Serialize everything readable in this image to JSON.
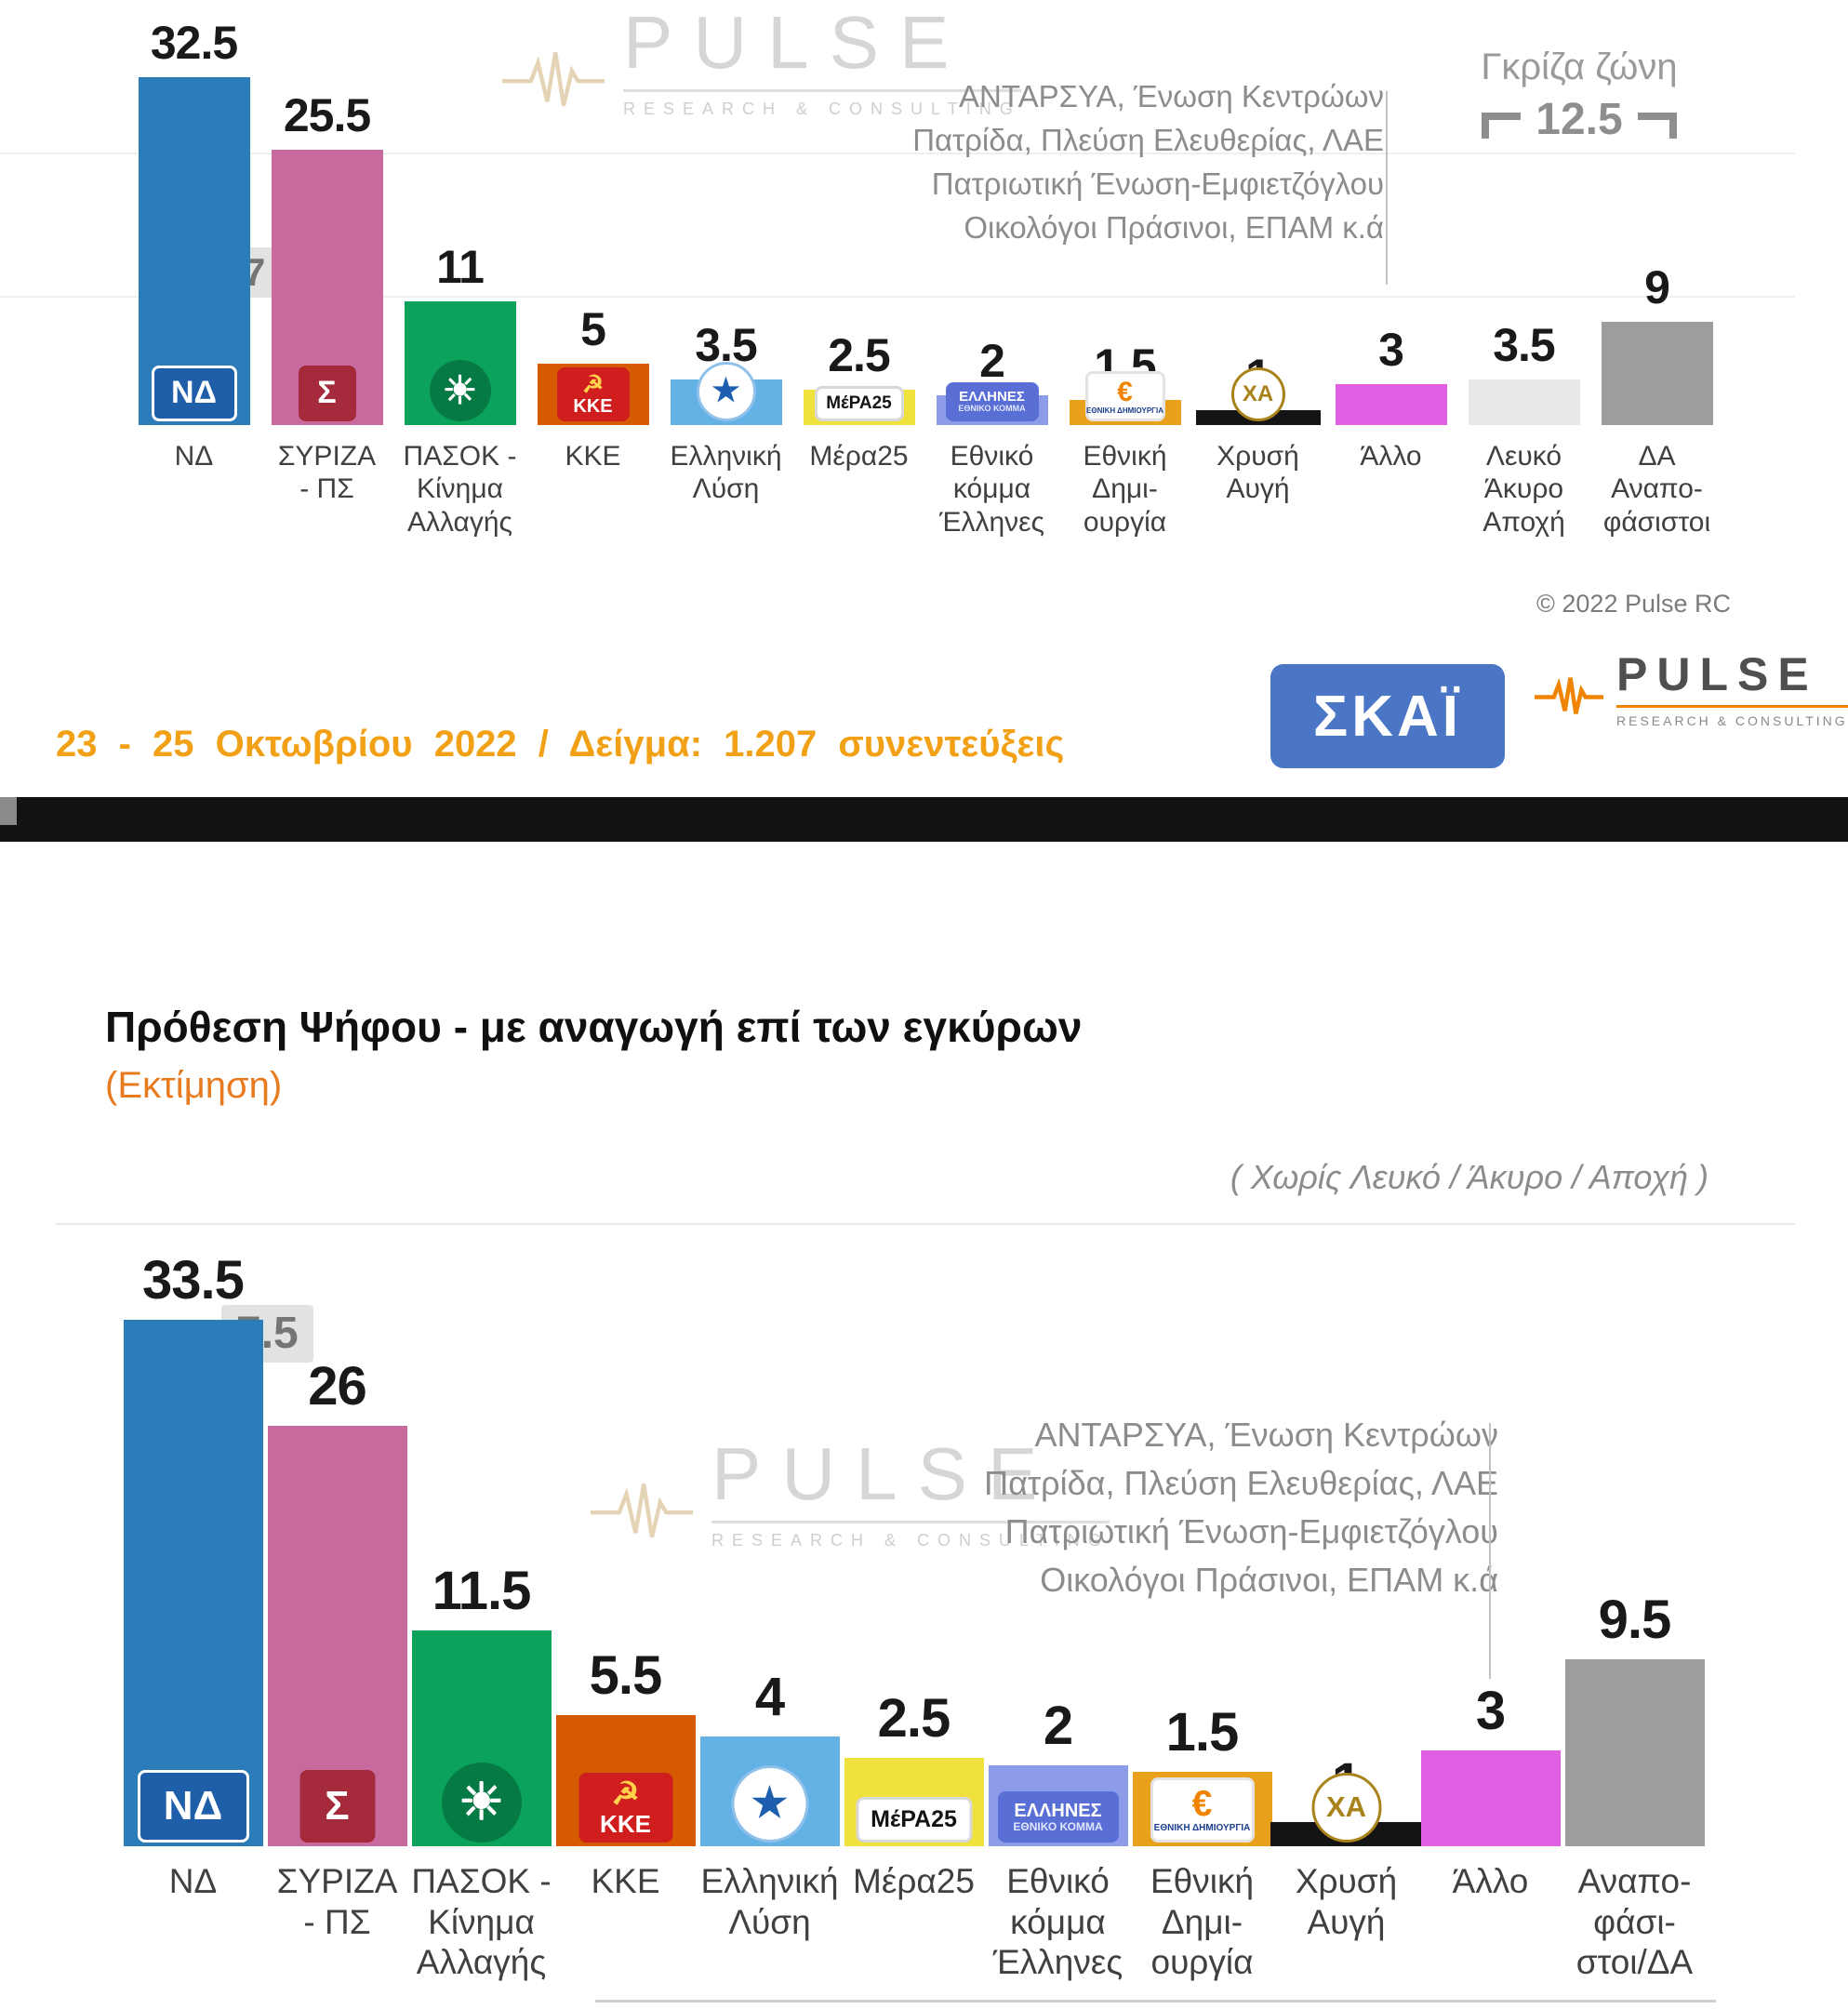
{
  "meta": {
    "copyright": "© 2022 Pulse RC",
    "footer_text": "23 - 25 Οκτωβρίου 2022 / Δείγμα: 1.207 συνεντεύξεις",
    "skai_logo_text": "ΣΚΑΪ",
    "pulse_logo_text": "PULSE",
    "pulse_logo_sub": "RESEARCH & CONSULTING"
  },
  "annotation": {
    "lines": [
      "ΑΝΤΑΡΣΥΑ, Ένωση Κεντρώων",
      "Πατρίδα, Πλεύση Ελευθερίας, ΛΑΕ",
      "Πατριωτική Ένωση-Εμφιετζόγλου",
      "Οικολόγοι Πράσινοι, ΕΠΑΜ  κ.ά"
    ]
  },
  "gray_zone": {
    "label": "Γκρίζα ζώνη",
    "value": "12.5"
  },
  "party_logos": {
    "nd": {
      "name": "nd-logo",
      "text": "ΝΔ",
      "ts": 34,
      "bg": "#1f5fa9",
      "fg": "#ffffff",
      "border": "#ffffff",
      "w": 92,
      "h": 60
    },
    "syriza-ps": {
      "name": "syriza-logo",
      "text": "Σ",
      "ts": 34,
      "bg": "#a52a3c",
      "fg": "#ffffff",
      "w": 62,
      "h": 60
    },
    "pasok": {
      "name": "pasok-logo",
      "text": "☀",
      "ts": 42,
      "bg": "#067a45",
      "fg": "#ffffff",
      "round": true,
      "w": 66,
      "h": 66
    },
    "kke": {
      "name": "kke-logo",
      "icon": "☭",
      "icon_size": 26,
      "icon_color": "#ffd24a",
      "text": "ΚΚΕ",
      "ts": 20,
      "bg": "#d01e1e",
      "fg": "#ffffff",
      "w": 78,
      "h": 58
    },
    "elliniki-lysi": {
      "name": "elliniki-lysi-logo",
      "text": "★",
      "ts": 34,
      "bg": "#ffffff",
      "fg": "#1d5fae",
      "border": "#8fc1ea",
      "round": true,
      "w": 64,
      "h": 64
    },
    "mera25": {
      "name": "mera25-logo",
      "text": "ΜέΡΑ25",
      "ts": 19,
      "bg": "#ffffff",
      "fg": "#141414",
      "border": "#d8d8d8",
      "w": 96,
      "h": 38
    },
    "ellines": {
      "name": "ellines-logo",
      "text": "ΕΛΛΗΝΕΣ",
      "ts": 15,
      "text2": "ΕΘΝΙΚΟ ΚΟΜΜΑ",
      "ts2": 9,
      "fg2": "#dfe6ff",
      "bg": "#5a6fd6",
      "fg": "#ffffff",
      "w": 100,
      "h": 42
    },
    "ethniki-dimiourgia": {
      "name": "ethniki-dimiourgia-logo",
      "text": "€",
      "ts": 30,
      "text2": "ΕΘΝΙΚΗ ΔΗΜΙΟΥΡΓΙΑ",
      "ts2": 8,
      "fg2": "#1d3f8f",
      "bg": "#ffffff",
      "fg": "#f08300",
      "border": "#e3e3e3",
      "w": 86,
      "h": 54
    },
    "chrysi-avgi": {
      "name": "chrysi-avgi-logo",
      "text": "ΧΑ",
      "ts": 24,
      "bg": "#ffffff",
      "fg": "#a8821a",
      "border": "#a8821a",
      "round": true,
      "w": 58,
      "h": 58
    }
  },
  "chart_data": [
    {
      "type": "bar",
      "gray_chip": "7",
      "bars": [
        {
          "id": "nd",
          "label": "ΝΔ",
          "value": 32.5,
          "color": "#2b7cb9"
        },
        {
          "id": "syriza-ps",
          "label": "ΣΥΡΙΖΑ\n- ΠΣ",
          "value": 25.5,
          "color": "#c96a9f"
        },
        {
          "id": "pasok",
          "label": "ΠΑΣΟΚ -\nΚίνημα\nΑλλαγής",
          "value": 11,
          "color": "#0ba25c"
        },
        {
          "id": "kke",
          "label": "ΚΚΕ",
          "value": 5,
          "color": "#d65a00"
        },
        {
          "id": "elliniki-lysi",
          "label": "Ελληνική\nΛύση",
          "value": 3.5,
          "color": "#63b1e5"
        },
        {
          "id": "mera25",
          "label": "Μέρα25",
          "value": 2.5,
          "color": "#f0e23c"
        },
        {
          "id": "ellines",
          "label": "Εθνικό\nκόμμα\nΈλληνες",
          "value": 2,
          "color": "#8d9ce9"
        },
        {
          "id": "ethniki-dimiourgia",
          "label": "Εθνική\nΔημι-\nουργία",
          "value": 1.5,
          "color": "#e9a11c"
        },
        {
          "id": "chrysi-avgi",
          "label": "Χρυσή\nΑυγή",
          "value": 1,
          "color": "#141414",
          "dash": true
        },
        {
          "id": "allo",
          "label": "Άλλο",
          "value": 3,
          "color": "#e05fe2"
        },
        {
          "id": "lefko-akyro-apochi",
          "label": "Λευκό\nΆκυρο\nΑποχή",
          "value": 3.5,
          "color": "#e9e9e9"
        },
        {
          "id": "da-anapofasistoi",
          "label": "ΔΑ\nΑναπο-\nφάσιστοι",
          "value": 9,
          "color": "#9d9d9d"
        }
      ]
    },
    {
      "type": "bar",
      "title": "Πρόθεση Ψήφου - με αναγωγή επί των εγκύρων",
      "subtitle": "(Εκτίμηση)",
      "note": "( Χωρίς Λευκό / Άκυρο / Αποχή )",
      "gray_chip": "7.5",
      "bars": [
        {
          "id": "nd",
          "label": "ΝΔ",
          "value": 33.5,
          "color": "#2b7cb9"
        },
        {
          "id": "syriza-ps",
          "label": "ΣΥΡΙΖΑ\n- ΠΣ",
          "value": 26,
          "color": "#c96a9f"
        },
        {
          "id": "pasok",
          "label": "ΠΑΣΟΚ -\nΚίνημα\nΑλλαγής",
          "value": 11.5,
          "color": "#0ba25c"
        },
        {
          "id": "kke",
          "label": "ΚΚΕ",
          "value": 5.5,
          "color": "#d65a00"
        },
        {
          "id": "elliniki-lysi",
          "label": "Ελληνική\nΛύση",
          "value": 4,
          "color": "#63b1e5"
        },
        {
          "id": "mera25",
          "label": "Μέρα25",
          "value": 2.5,
          "color": "#f0e23c"
        },
        {
          "id": "ellines",
          "label": "Εθνικό\nκόμμα\nΈλληνες",
          "value": 2,
          "color": "#8d9ce9"
        },
        {
          "id": "ethniki-dimiourgia",
          "label": "Εθνική\nΔημι-\nουργία",
          "value": 1.5,
          "color": "#e9a11c"
        },
        {
          "id": "chrysi-avgi",
          "label": "Χρυσή\nΑυγή",
          "value": 1,
          "color": "#141414",
          "dash": true
        },
        {
          "id": "allo",
          "label": "Άλλο",
          "value": 3,
          "color": "#e05fe2"
        },
        {
          "id": "anapofasistoi-da",
          "label": "Αναπο-\nφάσι-\nστοι/ΔΑ",
          "value": 9.5,
          "color": "#9d9d9d"
        }
      ]
    }
  ]
}
